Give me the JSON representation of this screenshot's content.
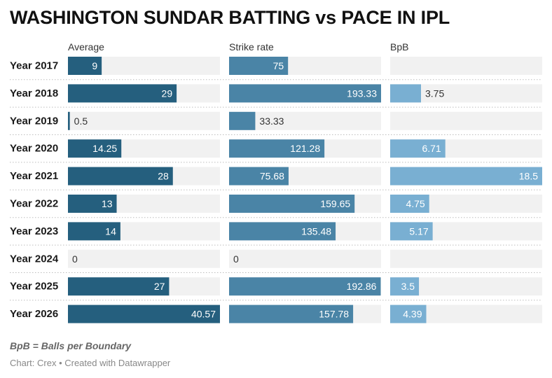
{
  "title": "WASHINGTON SUNDAR BATTING vs PACE IN IPL",
  "note": "BpB = Balls per Boundary",
  "credit": "Chart: Crex • Created with Datawrapper",
  "chart_data": {
    "type": "bar",
    "orientation": "horizontal",
    "title": "WASHINGTON SUNDAR BATTING vs PACE IN IPL",
    "categories": [
      "Year 2017",
      "Year 2018",
      "Year 2019",
      "Year 2020",
      "Year 2021",
      "Year 2022",
      "Year 2023",
      "Year 2024",
      "Year 2025",
      "Year 2026"
    ],
    "series": [
      {
        "name": "Average",
        "color": "#255f7e",
        "max": 40.57,
        "values": [
          9,
          29,
          0.5,
          14.25,
          28,
          13,
          14,
          0,
          27,
          40.57
        ],
        "labels": [
          "9",
          "29",
          "0.5",
          "14.25",
          "28",
          "13",
          "14",
          "0",
          "27",
          "40.57"
        ]
      },
      {
        "name": "Strike rate",
        "color": "#4a84a6",
        "max": 193.33,
        "values": [
          75,
          193.33,
          33.33,
          121.28,
          75.68,
          159.65,
          135.48,
          0,
          192.86,
          157.78
        ],
        "labels": [
          "75",
          "193.33",
          "33.33",
          "121.28",
          "75.68",
          "159.65",
          "135.48",
          "0",
          "192.86",
          "157.78"
        ]
      },
      {
        "name": "BpB",
        "color": "#79afd2",
        "max": 18.5,
        "values": [
          null,
          3.75,
          null,
          6.71,
          18.5,
          4.75,
          5.17,
          null,
          3.5,
          4.39
        ],
        "labels": [
          "",
          "3.75",
          "",
          "6.71",
          "18.5",
          "4.75",
          "5.17",
          "",
          "3.5",
          "4.39"
        ]
      }
    ],
    "grid": false,
    "legend": "none"
  }
}
